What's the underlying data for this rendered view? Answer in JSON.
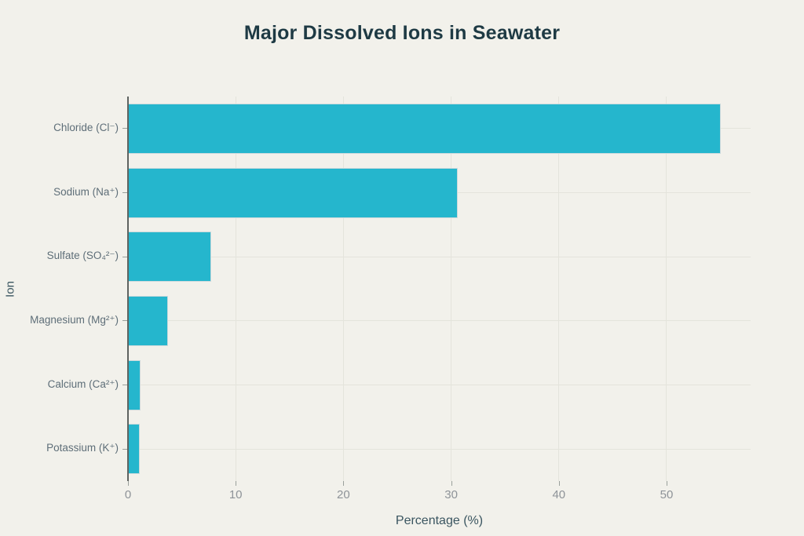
{
  "chart_data": {
    "type": "bar",
    "orientation": "horizontal",
    "title": "Major Dissolved Ions in Seawater",
    "xlabel": "Percentage (%)",
    "ylabel": "Ion",
    "categories": [
      "Chloride (Cl⁻)",
      "Sodium (Na⁺)",
      "Sulfate (SO₄²⁻)",
      "Magnesium (Mg²⁺)",
      "Calcium (Ca²⁺)",
      "Potassium (K⁺)"
    ],
    "values": [
      55.0,
      30.6,
      7.7,
      3.7,
      1.2,
      1.1
    ],
    "xticks": [
      0,
      10,
      20,
      30,
      40,
      50
    ],
    "xlim": [
      0,
      57.8
    ],
    "grid": true,
    "legend": "none",
    "colors": {
      "background": "#F2F1EB",
      "bar_fill": "#25B6CD",
      "bar_border": "#CDDADC",
      "gridline": "#E4E4DC",
      "axis_line": "#5F6360",
      "tick_label": "#8E9398",
      "category_label": "#5E6E78",
      "axis_title": "#3A5560",
      "title": "#1E3A44"
    }
  }
}
